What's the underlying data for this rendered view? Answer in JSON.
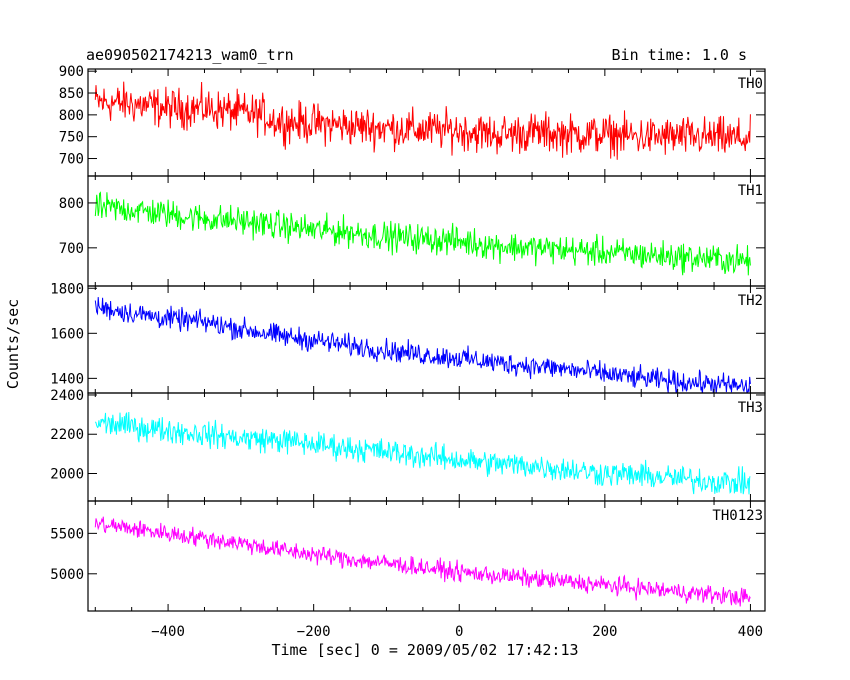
{
  "chart_data": {
    "type": "line",
    "title": "ae090502174213_wam0_trn",
    "subtitle": "Bin time: 1.0 s",
    "xlabel": "Time [sec] 0 = 2009/05/02 17:42:13",
    "ylabel": "Counts/sec",
    "xlim": [
      -510,
      420
    ],
    "x_ticks": [
      -400,
      -200,
      0,
      200,
      400
    ],
    "x_tick_labels": [
      "−400",
      "−200",
      "0",
      "200",
      "400"
    ],
    "grid": false,
    "panels": [
      {
        "name": "TH0",
        "color": "#ff0000",
        "ylim": [
          660,
          905
        ],
        "y_ticks": [
          700,
          750,
          800,
          850,
          900
        ],
        "y_tick_labels": [
          "700",
          "750",
          "800",
          "850",
          "900"
        ],
        "x": [
          -500,
          -450,
          -400,
          -350,
          -300,
          -270,
          -250,
          -200,
          -150,
          -100,
          -50,
          0,
          50,
          100,
          150,
          200,
          250,
          300,
          350,
          400
        ],
        "values": [
          830,
          825,
          815,
          815,
          805,
          800,
          785,
          780,
          775,
          770,
          765,
          765,
          755,
          760,
          755,
          755,
          750,
          750,
          748,
          745
        ],
        "noise": 28
      },
      {
        "name": "TH1",
        "color": "#00ff00",
        "ylim": [
          615,
          860
        ],
        "y_ticks": [
          700,
          800
        ],
        "y_tick_labels": [
          "700",
          "800"
        ],
        "x": [
          -500,
          -450,
          -400,
          -350,
          -300,
          -250,
          -200,
          -150,
          -100,
          -50,
          0,
          50,
          100,
          150,
          200,
          250,
          300,
          350,
          400
        ],
        "values": [
          790,
          785,
          775,
          765,
          760,
          750,
          740,
          735,
          725,
          720,
          715,
          705,
          700,
          695,
          690,
          685,
          680,
          675,
          670
        ],
        "noise": 20
      },
      {
        "name": "TH2",
        "color": "#0000ff",
        "ylim": [
          1335,
          1810
        ],
        "y_ticks": [
          1400,
          1600,
          1800
        ],
        "y_tick_labels": [
          "1400",
          "1600",
          "1800"
        ],
        "x": [
          -500,
          -450,
          -400,
          -350,
          -300,
          -250,
          -200,
          -150,
          -100,
          -50,
          0,
          50,
          100,
          150,
          200,
          250,
          300,
          350,
          400
        ],
        "values": [
          1720,
          1690,
          1665,
          1650,
          1620,
          1590,
          1570,
          1545,
          1525,
          1505,
          1490,
          1470,
          1455,
          1440,
          1420,
          1400,
          1385,
          1375,
          1360
        ],
        "noise": 30
      },
      {
        "name": "TH3",
        "color": "#00ffff",
        "ylim": [
          1860,
          2410
        ],
        "y_ticks": [
          2000,
          2200,
          2400
        ],
        "y_tick_labels": [
          "2000",
          "2200",
          "2400"
        ],
        "x": [
          -500,
          -450,
          -400,
          -350,
          -300,
          -250,
          -200,
          -150,
          -100,
          -50,
          0,
          50,
          100,
          150,
          200,
          250,
          300,
          350,
          400
        ],
        "values": [
          2260,
          2240,
          2220,
          2200,
          2180,
          2170,
          2150,
          2130,
          2110,
          2090,
          2070,
          2050,
          2040,
          2020,
          2000,
          1990,
          1975,
          1960,
          1950
        ],
        "noise": 40
      },
      {
        "name": "TH0123",
        "color": "#ff00ff",
        "ylim": [
          4540,
          5900
        ],
        "y_ticks": [
          5000,
          5500
        ],
        "y_tick_labels": [
          "5000",
          "5500"
        ],
        "x": [
          -500,
          -450,
          -400,
          -350,
          -300,
          -250,
          -200,
          -150,
          -100,
          -50,
          0,
          50,
          100,
          150,
          200,
          250,
          300,
          350,
          400
        ],
        "values": [
          5620,
          5560,
          5500,
          5440,
          5380,
          5300,
          5240,
          5180,
          5130,
          5080,
          5020,
          4980,
          4940,
          4900,
          4860,
          4820,
          4780,
          4740,
          4700
        ],
        "noise": 70
      }
    ]
  }
}
